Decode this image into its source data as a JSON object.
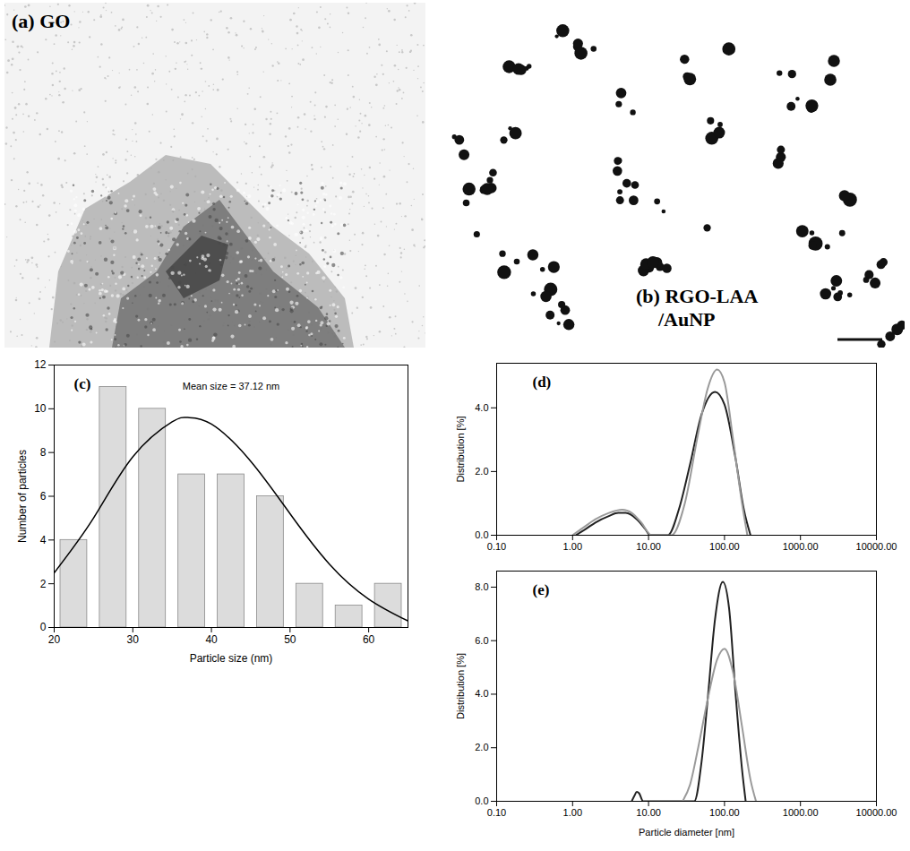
{
  "images": [
    {
      "label": "(a) GO"
    },
    {
      "label": "(b) RGO-LAA /AuNP"
    }
  ],
  "chart_data": [
    {
      "panel": "(c)",
      "type": "histogram",
      "annotation": "Mean size = 37.12 nm",
      "x_label": "Particle size (nm)",
      "y_label": "Number of particles",
      "bins": [
        20,
        25,
        30,
        35,
        40,
        45,
        50,
        55,
        60,
        65
      ],
      "counts": [
        4,
        11,
        10,
        7,
        7,
        6,
        2,
        1,
        2
      ],
      "color": "#dcdcdc",
      "series": [
        {
          "type": "line",
          "color": "#000000",
          "x": [
            20,
            25,
            30,
            35,
            37,
            40,
            45,
            50,
            55,
            60,
            65
          ],
          "values": [
            2.5,
            5.0,
            7.8,
            9.4,
            9.6,
            9.3,
            7.6,
            5.2,
            2.9,
            1.3,
            0.3
          ]
        }
      ],
      "xlim": [
        20,
        65
      ],
      "ylim": [
        0,
        12
      ],
      "xticks": [
        20,
        30,
        40,
        50,
        60
      ],
      "yticks": [
        0,
        2,
        4,
        6,
        8,
        10,
        12
      ]
    },
    {
      "panel": "(d)",
      "type": "line",
      "log": "x",
      "y_label": "Distribution [%]",
      "xlim": [
        0.1,
        10000
      ],
      "xticks": [
        {
          "value": 0.1,
          "label": "0.10"
        },
        {
          "value": 1,
          "label": "1.00"
        },
        {
          "value": 10,
          "label": "10.00"
        },
        {
          "value": 100,
          "label": "100.00"
        },
        {
          "value": 1000,
          "label": "1000.00"
        },
        {
          "value": 10000,
          "label": "10000.00"
        }
      ],
      "ylim": [
        0,
        5.4
      ],
      "yticks": [
        {
          "value": 0,
          "label": "0.0"
        },
        {
          "value": 2,
          "label": "2.0"
        },
        {
          "value": 4,
          "label": "4.0"
        }
      ],
      "series": [
        {
          "color": "#222222",
          "x": [
            1.1,
            1.5,
            2,
            3,
            4,
            5,
            7,
            9,
            10.5,
            18,
            25,
            35,
            50,
            75,
            100,
            140,
            180,
            220
          ],
          "values": [
            0,
            0.2,
            0.4,
            0.6,
            0.7,
            0.7,
            0.5,
            0.2,
            0,
            0,
            0.8,
            2.2,
            3.8,
            4.5,
            4.1,
            2.4,
            0.8,
            0
          ]
        },
        {
          "color": "#9a9a9a",
          "x": [
            1.0,
            1.5,
            2,
            3,
            4.5,
            6,
            8,
            11,
            20,
            30,
            45,
            60,
            80,
            100,
            130,
            170,
            200
          ],
          "values": [
            0,
            0.3,
            0.5,
            0.7,
            0.8,
            0.7,
            0.4,
            0,
            0,
            1.0,
            3.2,
            4.6,
            5.2,
            4.8,
            3.0,
            1.0,
            0
          ]
        }
      ]
    },
    {
      "panel": "(e)",
      "type": "line",
      "log": "x",
      "y_label": "Distribution [%]",
      "x_label": "Particle diameter [nm]",
      "xlim": [
        0.1,
        10000
      ],
      "xticks": [
        {
          "value": 0.1,
          "label": "0.10"
        },
        {
          "value": 1,
          "label": "1.00"
        },
        {
          "value": 10,
          "label": "10.00"
        },
        {
          "value": 100,
          "label": "100.00"
        },
        {
          "value": 1000,
          "label": "1000.00"
        },
        {
          "value": 10000,
          "label": "10000.00"
        }
      ],
      "ylim": [
        0,
        8.6
      ],
      "yticks": [
        {
          "value": 0,
          "label": "0.0"
        },
        {
          "value": 2,
          "label": "2.0"
        },
        {
          "value": 4,
          "label": "4.0"
        },
        {
          "value": 6,
          "label": "6.0"
        },
        {
          "value": 8,
          "label": "8.0"
        }
      ],
      "series": [
        {
          "color": "#222222",
          "x": [
            6,
            6.5,
            7,
            7.5,
            8.5,
            40,
            50,
            60,
            75,
            95,
            115,
            140,
            170,
            190
          ],
          "values": [
            0,
            0.2,
            0.35,
            0.3,
            0,
            0,
            1.5,
            3.8,
            6.8,
            8.2,
            7.2,
            4.0,
            1.2,
            0
          ]
        },
        {
          "color": "#9a9a9a",
          "x": [
            28,
            35,
            45,
            60,
            80,
            100,
            130,
            170,
            220,
            260
          ],
          "values": [
            0,
            0.6,
            2.0,
            3.8,
            5.3,
            5.7,
            4.8,
            2.8,
            0.8,
            0
          ]
        }
      ]
    }
  ]
}
